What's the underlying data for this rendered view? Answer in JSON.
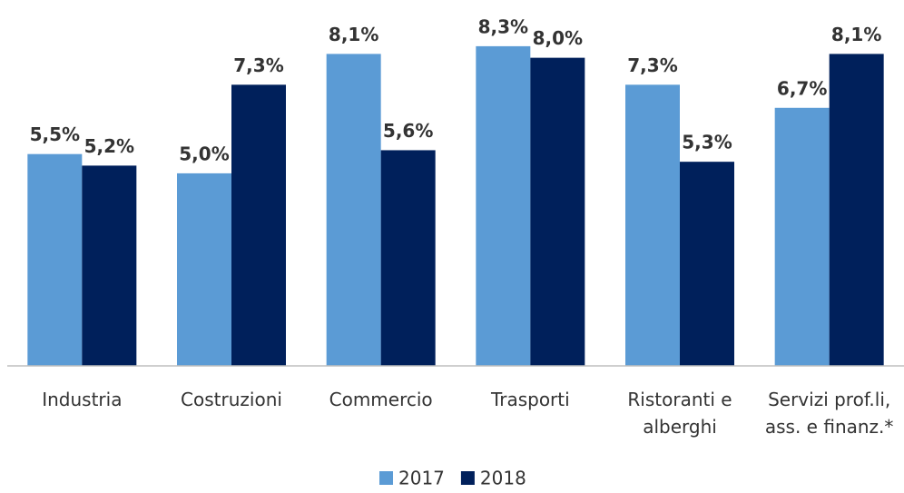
{
  "chart_data": {
    "type": "bar",
    "categories": [
      "Industria",
      "Costruzioni",
      "Commercio",
      "Trasporti",
      "Ristoranti e alberghi",
      "Servizi prof.li, ass. e finanz.*"
    ],
    "series": [
      {
        "name": "2017",
        "color": "#5b9bd5",
        "values": [
          5.5,
          5.0,
          8.1,
          8.3,
          7.3,
          6.7
        ],
        "value_labels": [
          "5,5%",
          "5,0%",
          "8,1%",
          "8,3%",
          "7,3%",
          "6,7%"
        ]
      },
      {
        "name": "2018",
        "color": "#00205b",
        "values": [
          5.2,
          7.3,
          5.6,
          8.0,
          5.3,
          8.1
        ],
        "value_labels": [
          "5,2%",
          "7,3%",
          "5,6%",
          "8,0%",
          "5,3%",
          "8,1%"
        ]
      }
    ],
    "ylim": [
      0,
      9.5
    ],
    "legend": "bottom"
  }
}
